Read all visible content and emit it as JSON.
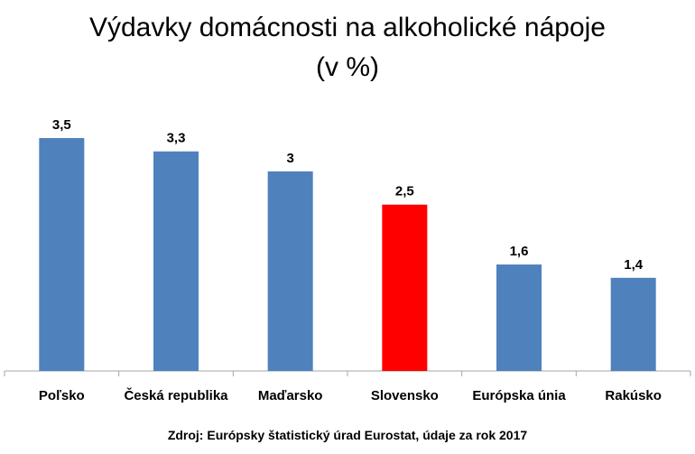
{
  "chart_data": {
    "type": "bar",
    "title": "Výdavky domácnosti na alkoholické nápoje",
    "subtitle": "(v %)",
    "categories": [
      "Poľsko",
      "Česká republika",
      "Maďarsko",
      "Slovensko",
      "Európska únia",
      "Rakúsko"
    ],
    "values": [
      3.5,
      3.3,
      3,
      2.5,
      1.6,
      1.4
    ],
    "value_labels": [
      "3,5",
      "3,3",
      "3",
      "2,5",
      "1,6",
      "1,4"
    ],
    "ylim": [
      0,
      3.5
    ],
    "grid": false,
    "legend": "none",
    "colors": {
      "default": "#4F81BD",
      "highlight": "#FF0000",
      "highlight_category": "Slovensko",
      "axis": "#A6A6A6"
    }
  },
  "source": "Zdroj: Európsky štatistický úrad Eurostat, údaje za rok 2017"
}
